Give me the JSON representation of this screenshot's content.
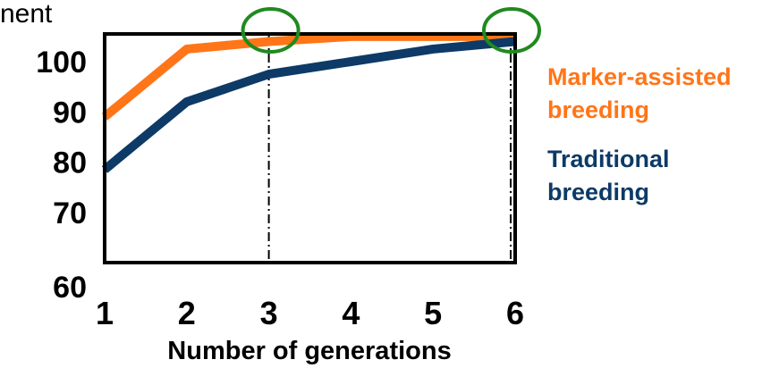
{
  "chart_data": {
    "type": "line",
    "title": "",
    "xlabel": "Number of generations",
    "ylabel": "nent",
    "x": [
      1,
      2,
      3,
      4,
      5,
      6
    ],
    "xlim": [
      1,
      6
    ],
    "ylim": [
      60,
      105
    ],
    "yticks": [
      60,
      70,
      80,
      90,
      100
    ],
    "xticks": [
      1,
      2,
      3,
      4,
      5,
      6
    ],
    "grid": false,
    "legend_position": "right",
    "series": [
      {
        "name": "Marker-assisted breeding",
        "legend_lines": [
          "Marker-assisted",
          "breeding"
        ],
        "color": "#ff7518",
        "values": [
          89,
          102.5,
          104,
          105,
          105,
          105
        ]
      },
      {
        "name": "Traditional breeding",
        "legend_lines": [
          "Traditional",
          "breeding"
        ],
        "color": "#0d3a66",
        "values": [
          78.5,
          92,
          97.5,
          100,
          102.5,
          104
        ]
      }
    ],
    "annotations": [
      {
        "type": "vertical-dashdot-line",
        "x": 3
      },
      {
        "type": "vertical-dashdot-line",
        "x": 6
      },
      {
        "type": "circle-marker",
        "x": 3,
        "y": 104,
        "color": "#1f8a1f"
      },
      {
        "type": "circle-marker",
        "x": 6,
        "y": 105,
        "color": "#1f8a1f"
      }
    ]
  }
}
